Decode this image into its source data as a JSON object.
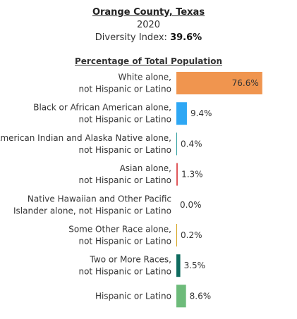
{
  "header": {
    "county": "Orange County, Texas",
    "year": "2020",
    "diversity_label": "Diversity Index:",
    "diversity_value": "39.6%"
  },
  "chart_data": {
    "type": "bar",
    "orientation": "horizontal",
    "title": "Percentage of Total Population",
    "xlim": [
      0,
      100
    ],
    "categories": [
      [
        "White alone,",
        "not Hispanic or Latino"
      ],
      [
        "Black or African American alone,",
        "not Hispanic or Latino"
      ],
      [
        "American Indian and Alaska Native alone,",
        "not Hispanic or Latino"
      ],
      [
        "Asian alone,",
        "not Hispanic or Latino"
      ],
      [
        "Native Hawaiian and Other Pacific",
        "Islander alone, not Hispanic or Latino"
      ],
      [
        "Some Other Race alone,",
        "not Hispanic or Latino"
      ],
      [
        "Two or More Races,",
        "not Hispanic or Latino"
      ],
      [
        "Hispanic or Latino"
      ]
    ],
    "values": [
      76.6,
      9.4,
      0.4,
      1.3,
      0.0,
      0.2,
      3.5,
      8.6
    ],
    "value_labels": [
      "76.6%",
      "9.4%",
      "0.4%",
      "1.3%",
      "0.0%",
      "0.2%",
      "3.5%",
      "8.6%"
    ],
    "colors": [
      "#f0954f",
      "#2ea7f4",
      "#2a9d9d",
      "#e0585b",
      "#9b6fb5",
      "#d4a017",
      "#0f6b5f",
      "#6dbb7a"
    ]
  }
}
